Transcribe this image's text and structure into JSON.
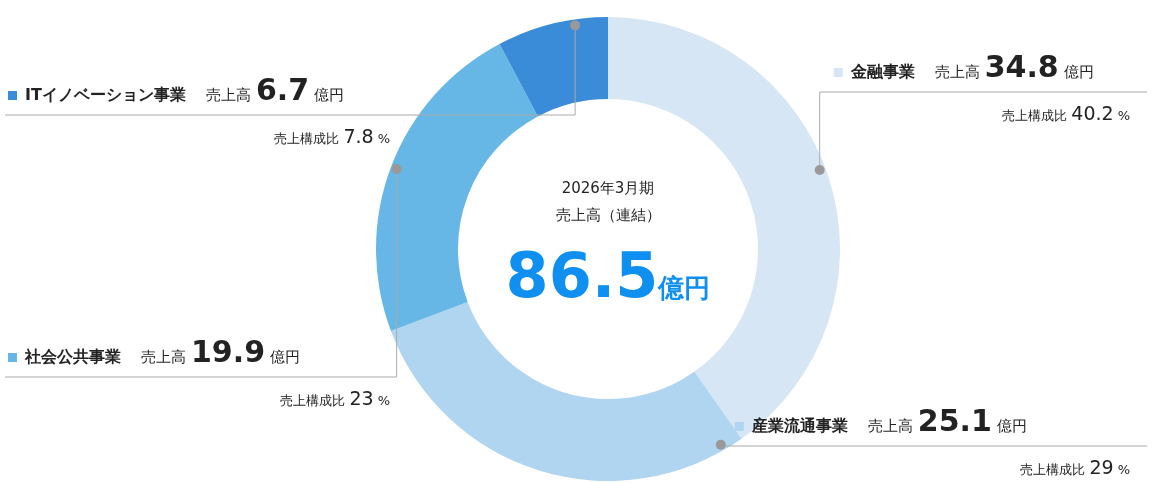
{
  "chart_data": {
    "type": "donut",
    "categories": [
      "金融事業",
      "産業流通事業",
      "社会公共事業",
      "ITイノベーション事業"
    ],
    "values": [
      34.8,
      25.1,
      19.9,
      6.7
    ],
    "colors": [
      "#d6e6f4",
      "#afd5f0",
      "#67b7e6",
      "#3a8bd8"
    ],
    "value_labels": [
      "売上高 34.8 億円",
      "売上高 25.1 億円",
      "売上高 19.9 億円",
      "売上高 6.7 億円"
    ],
    "annotations": [
      "2026年3月期",
      "売上高（連結）",
      "86.5億円",
      "売上構成比 40.2 %",
      "売上構成比 29 %",
      "売上構成比 23 %",
      "売上構成比 7.8 %"
    ],
    "legend": "left"
  }
}
